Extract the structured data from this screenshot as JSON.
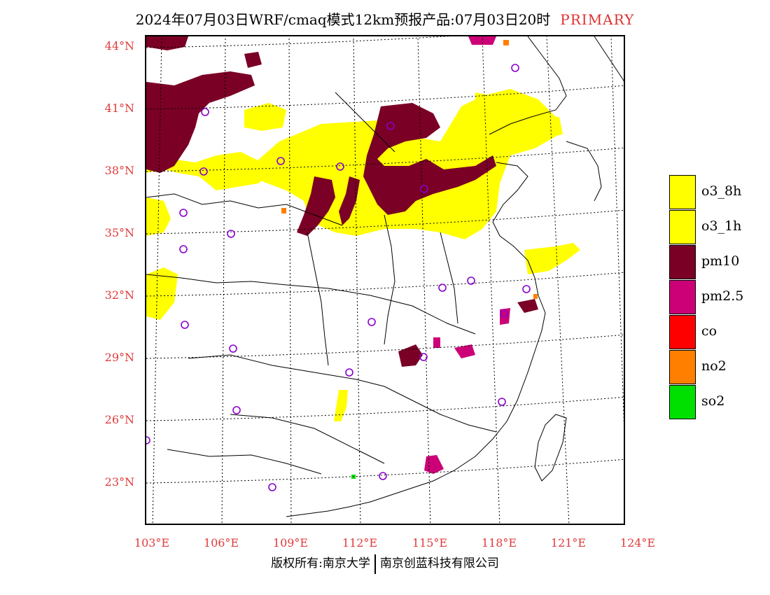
{
  "title": {
    "text": "2024年07月03日WRF/cmaq模式12km预报产品:07月03日20时",
    "flag": "PRIMARY"
  },
  "lat_labels": [
    "44°N",
    "41°N",
    "38°N",
    "35°N",
    "32°N",
    "29°N",
    "26°N",
    "23°N"
  ],
  "lon_labels": [
    "103°E",
    "106°E",
    "109°E",
    "112°E",
    "115°E",
    "118°E",
    "121°E",
    "124°E"
  ],
  "legend": [
    {
      "label": "o3_8h",
      "color": "#ffff00"
    },
    {
      "label": "o3_1h",
      "color": "#ffff00"
    },
    {
      "label": "pm10",
      "color": "#7a0026"
    },
    {
      "label": "pm2.5",
      "color": "#cc0077"
    },
    {
      "label": "co",
      "color": "#ff0000"
    },
    {
      "label": "no2",
      "color": "#ff8000"
    },
    {
      "label": "so2",
      "color": "#00e000"
    }
  ],
  "footer": {
    "left": "版权所有:南京大学",
    "right": "南京创蓝科技有限公司"
  },
  "colors": {
    "axis_label": "#e03a3a",
    "station_marker": "#8800cc",
    "title_flag": "#e03030"
  }
}
